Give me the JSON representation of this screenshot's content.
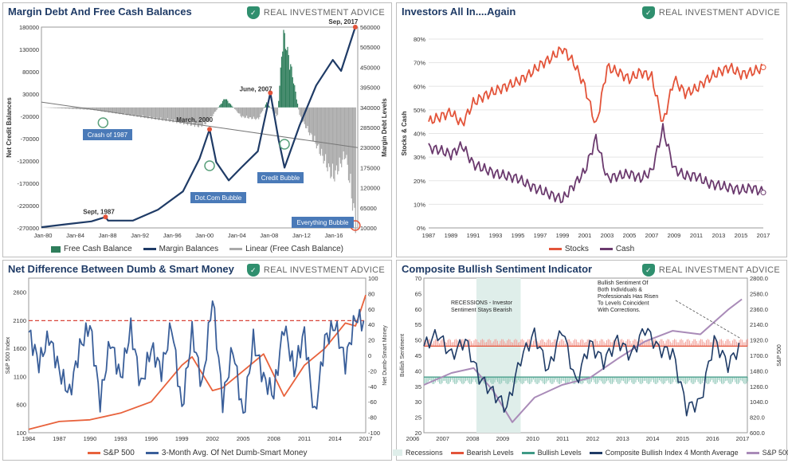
{
  "panels": [
    {
      "title": "Margin Debt And Free Cash Balances",
      "logo": "REAL INVESTMENT ADVICE"
    },
    {
      "title": "Investors All In....Again",
      "logo": "REAL INVESTMENT ADVICE"
    },
    {
      "title": "Net Difference Between Dumb & Smart Money",
      "logo": "REAL INVESTMENT ADVICE"
    },
    {
      "title": "Composite Bullish Sentiment Indicator",
      "logo": "REAL INVESTMENT ADVICE"
    }
  ],
  "colors": {
    "navy": "#1f3b66",
    "green": "#2e7d5b",
    "gray": "#a9a9a9",
    "red": "#e3543a",
    "purple": "#6b3a6e",
    "orange": "#e8623c",
    "blue": "#3a5f9a",
    "lightpurple": "#a98bb8",
    "teal": "#3f9a86"
  },
  "chart_data": [
    {
      "type": "area",
      "title": "Margin Debt And Free Cash Balances",
      "ylabel": "Net Credit Balances",
      "y2label": "Margin Debt Levels",
      "x_ticks": [
        "Jan-80",
        "Jan-84",
        "Jan-88",
        "Jan-92",
        "Jan-96",
        "Jan-00",
        "Jan-04",
        "Jan-08",
        "Jan-12",
        "Jan-16"
      ],
      "y_ticks": [
        "180000",
        "130000",
        "80000",
        "30000",
        "-20000",
        "-70000",
        "-120000",
        "-170000",
        "-220000",
        "-270000"
      ],
      "y2_ticks": [
        "560000",
        "505000",
        "450000",
        "395000",
        "340000",
        "285000",
        "230000",
        "175000",
        "120000",
        "65000",
        "10000"
      ],
      "ylim": [
        -270000,
        180000
      ],
      "y2lim": [
        10000,
        560000
      ],
      "annotations": [
        "Sep, 2017",
        "June, 2007",
        "March, 2000",
        "Sept, 1987",
        "Crash of 1987",
        "Dot.Com Bubble",
        "Credit Bubble",
        "Everything Bubble"
      ],
      "legend": [
        "Free Cash Balance",
        "Margin Balances",
        "Linear (Free Cash Balance)"
      ],
      "series": [
        {
          "name": "Margin Balances",
          "x": [
            1980,
            1983,
            1986,
            1987.7,
            1988,
            1991,
            1994,
            1997,
            1999,
            2000.2,
            2001,
            2002.5,
            2004,
            2006,
            2007.5,
            2008.5,
            2009.2,
            2011,
            2013,
            2015,
            2016,
            2017.7
          ],
          "values": [
            12000,
            20000,
            28000,
            40000,
            30000,
            30000,
            60000,
            110000,
            200000,
            280000,
            190000,
            140000,
            175000,
            220000,
            380000,
            250000,
            175000,
            290000,
            400000,
            470000,
            440000,
            560000
          ]
        },
        {
          "name": "Free Cash Balance",
          "x": [
            1980,
            1986,
            1992,
            1996,
            1999,
            2000,
            2001,
            2002,
            2004,
            2006,
            2007,
            2008.3,
            2009,
            2010,
            2011,
            2013,
            2015,
            2016.5,
            2017.7
          ],
          "values": [
            0,
            -5000,
            -20000,
            -30000,
            -40000,
            -30000,
            -5000,
            20000,
            -20000,
            -25000,
            10000,
            -20000,
            160000,
            80000,
            -20000,
            -80000,
            -150000,
            -100000,
            -250000
          ]
        }
      ]
    },
    {
      "type": "line",
      "title": "Investors All In....Again",
      "ylabel": "Stocks & Cash",
      "x_ticks": [
        "1987",
        "1989",
        "1991",
        "1993",
        "1995",
        "1997",
        "1999",
        "2001",
        "2003",
        "2005",
        "2007",
        "2009",
        "2011",
        "2013",
        "2015",
        "2017"
      ],
      "y_ticks": [
        "80%",
        "70%",
        "60%",
        "50%",
        "40%",
        "30%",
        "20%",
        "10%",
        "0%"
      ],
      "ylim": [
        0,
        80
      ],
      "legend": [
        "Stocks",
        "Cash"
      ],
      "series": [
        {
          "name": "Stocks",
          "x": [
            1987,
            1988,
            1989,
            1990,
            1991,
            1992,
            1993,
            1994,
            1995,
            1996,
            1997,
            1998,
            1999,
            2000,
            2001,
            2002,
            2003,
            2004,
            2005,
            2006,
            2007,
            2008,
            2009,
            2010,
            2011,
            2012,
            2013,
            2014,
            2015,
            2016,
            2017
          ],
          "values": [
            45,
            47,
            49,
            44,
            53,
            56,
            58,
            60,
            62,
            65,
            69,
            72,
            76,
            70,
            60,
            43,
            68,
            66,
            63,
            66,
            64,
            44,
            63,
            57,
            59,
            63,
            66,
            68,
            65,
            66,
            68
          ]
        },
        {
          "name": "Cash",
          "x": [
            1987,
            1988,
            1989,
            1990,
            1991,
            1992,
            1993,
            1994,
            1995,
            1996,
            1997,
            1998,
            1999,
            2000,
            2001,
            2002,
            2003,
            2004,
            2005,
            2006,
            2007,
            2008,
            2009,
            2010,
            2011,
            2012,
            2013,
            2014,
            2015,
            2016,
            2017
          ],
          "values": [
            34,
            33,
            31,
            35,
            27,
            25,
            23,
            22,
            21,
            18,
            16,
            14,
            12,
            18,
            24,
            38,
            21,
            22,
            23,
            21,
            24,
            42,
            25,
            22,
            22,
            19,
            18,
            17,
            16,
            17,
            15
          ]
        }
      ]
    },
    {
      "type": "line",
      "title": "Net Difference Between Dumb & Smart Money",
      "ylabel": "S&P 500 Index",
      "y2label": "Net Dumb-Smart Money",
      "x_ticks": [
        "1984",
        "1987",
        "1990",
        "1993",
        "1996",
        "1999",
        "2002",
        "2005",
        "2008",
        "2011",
        "2014",
        "2017"
      ],
      "y_ticks": [
        "2600",
        "2100",
        "1600",
        "1100",
        "600",
        "100"
      ],
      "y2_ticks": [
        "100",
        "80",
        "60",
        "40",
        "20",
        "0",
        "-20",
        "-40",
        "-60",
        "-80",
        "-100"
      ],
      "ylim": [
        100,
        2850
      ],
      "y2lim": [
        -100,
        100
      ],
      "legend": [
        "S&P 500",
        "3-Month Avg. Of Net Dumb-Smart Money"
      ],
      "series": [
        {
          "name": "S&P 500",
          "x": [
            1984,
            1987,
            1990,
            1993,
            1996,
            1999,
            2000,
            2002,
            2003,
            2005,
            2007,
            2009,
            2011,
            2013,
            2015,
            2016,
            2017
          ],
          "values": [
            160,
            300,
            330,
            450,
            650,
            1300,
            1450,
            850,
            900,
            1200,
            1500,
            750,
            1300,
            1600,
            2050,
            2000,
            2550
          ]
        },
        {
          "name": "3-Month Avg. Of Net Dumb-Smart Money",
          "x": [
            1984,
            1985,
            1986,
            1987,
            1988,
            1989,
            1990,
            1991,
            1992,
            1993,
            1994,
            1995,
            1996,
            1997,
            1998,
            1999,
            2000,
            2001,
            2002,
            2003,
            2004,
            2005,
            2006,
            2007,
            2008,
            2009,
            2010,
            2011,
            2012,
            2013,
            2014,
            2015,
            2016,
            2017
          ],
          "values": [
            30,
            -10,
            25,
            -20,
            -50,
            10,
            40,
            -60,
            20,
            -30,
            35,
            -40,
            10,
            -20,
            40,
            -70,
            30,
            -40,
            75,
            -60,
            10,
            -80,
            20,
            -30,
            -50,
            40,
            -20,
            30,
            -80,
            20,
            40,
            -10,
            50,
            40
          ]
        }
      ]
    },
    {
      "type": "line",
      "title": "Composite Bullish Sentiment Indicator",
      "ylabel": "Bullish Sentiment",
      "y2label": "S&P 500",
      "x_ticks": [
        "2006",
        "2007",
        "2008",
        "2009",
        "2010",
        "2011",
        "2012",
        "2013",
        "2014",
        "2015",
        "2016",
        "2017"
      ],
      "y_ticks": [
        "70",
        "65",
        "60",
        "55",
        "50",
        "45",
        "40",
        "35",
        "30",
        "25",
        "20"
      ],
      "y2_ticks": [
        "2800.0",
        "2580.0",
        "2360.0",
        "2140.0",
        "1920.0",
        "1700.0",
        "1480.0",
        "1260.0",
        "1040.0",
        "820.0",
        "600.0"
      ],
      "ylim": [
        20,
        70
      ],
      "y2lim": [
        600,
        2800
      ],
      "annotations": [
        "RECESSIONS - Investor Sentiment Stays Bearish",
        "Bullish Sentiment Of Both Individuals & Professionals Has Risen To Levels Coincident With Corrections."
      ],
      "legend": [
        "Recessions",
        "Bearish Levels",
        "Bullish Levels",
        "Composite Bullish Index 4 Month Average",
        "S&P 500"
      ],
      "series": [
        {
          "name": "Composite Bullish Index 4 Month Average",
          "x": [
            2006,
            2006.5,
            2007,
            2007.5,
            2008,
            2008.5,
            2009,
            2009.5,
            2010,
            2010.5,
            2011,
            2011.5,
            2012,
            2012.5,
            2013,
            2013.5,
            2014,
            2014.5,
            2015,
            2015.5,
            2016,
            2016.5,
            2017,
            2017.5
          ],
          "values": [
            48,
            52,
            45,
            50,
            38,
            33,
            28,
            44,
            52,
            40,
            54,
            36,
            49,
            43,
            50,
            45,
            54,
            47,
            46,
            28,
            30,
            50,
            42,
            49
          ]
        },
        {
          "name": "S&P 500",
          "x": [
            2006,
            2007,
            2007.8,
            2008.5,
            2009.2,
            2010,
            2011,
            2012,
            2013,
            2014,
            2015,
            2016,
            2017,
            2017.5
          ],
          "values": [
            1280,
            1450,
            1520,
            1200,
            750,
            1100,
            1280,
            1380,
            1650,
            1900,
            2050,
            2000,
            2350,
            2500
          ]
        }
      ]
    }
  ]
}
